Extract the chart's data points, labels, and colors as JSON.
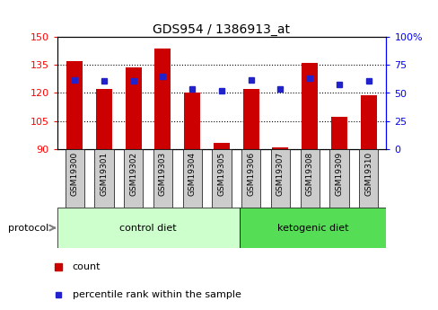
{
  "title": "GDS954 / 1386913_at",
  "samples": [
    "GSM19300",
    "GSM19301",
    "GSM19302",
    "GSM19303",
    "GSM19304",
    "GSM19305",
    "GSM19306",
    "GSM19307",
    "GSM19308",
    "GSM19309",
    "GSM19310"
  ],
  "counts": [
    137,
    122,
    134,
    144,
    120,
    93,
    122,
    91,
    136,
    107,
    119
  ],
  "percentiles": [
    62,
    61,
    61,
    65,
    54,
    52,
    62,
    54,
    63,
    58,
    61
  ],
  "bar_bottom": 90,
  "ylim_left": [
    90,
    150
  ],
  "ylim_right": [
    0,
    100
  ],
  "yticks_left": [
    90,
    105,
    120,
    135,
    150
  ],
  "yticks_right": [
    0,
    25,
    50,
    75,
    100
  ],
  "yticklabels_right": [
    "0",
    "25",
    "50",
    "75",
    "100%"
  ],
  "bar_color": "#cc0000",
  "dot_color": "#2222cc",
  "control_label": "control diet",
  "ketogenic_label": "ketogenic diet",
  "protocol_label": "protocol",
  "legend_count": "count",
  "legend_percentile": "percentile rank within the sample",
  "control_bg": "#ccffcc",
  "ketogenic_bg": "#55dd55",
  "tick_bg": "#cccccc",
  "n_control": 6,
  "n_ketogenic": 5,
  "bar_width": 0.55,
  "title_fontsize": 10
}
